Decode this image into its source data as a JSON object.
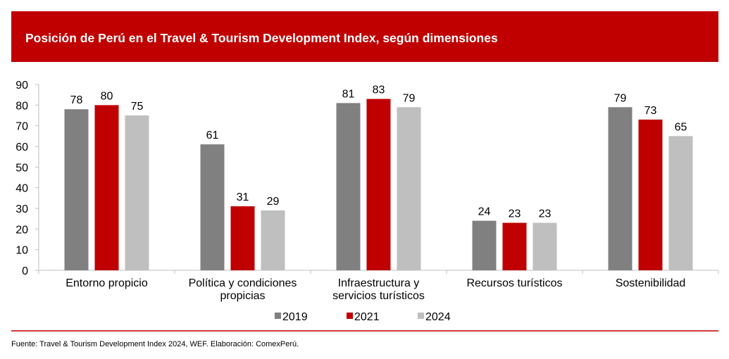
{
  "header": {
    "title": "Posición de Perú en el Travel & Tourism Development Index, según dimensiones"
  },
  "footer": {
    "source": "Fuente: Travel & Tourism Development Index 2024, WEF. Elaboración: ComexPerú."
  },
  "colors": {
    "header_bg": "#c00000",
    "series_2019": "#808080",
    "series_2021": "#c00000",
    "series_2024": "#bfbfbf",
    "footer_line": "#d23a3a"
  },
  "chart_data": {
    "type": "bar",
    "title": "Posición de Perú en el Travel & Tourism Development Index, según dimensiones",
    "xlabel": "",
    "ylabel": "",
    "ylim": [
      0,
      90
    ],
    "yticks": [
      0,
      10,
      20,
      30,
      40,
      50,
      60,
      70,
      80,
      90
    ],
    "grid": false,
    "legend_position": "bottom",
    "categories": [
      [
        "Entorno propicio"
      ],
      [
        "Política y condiciones",
        "propicias"
      ],
      [
        "Infraestructura y",
        "servicios turísticos"
      ],
      [
        "Recursos turísticos"
      ],
      [
        "Sostenibilidad"
      ]
    ],
    "series": [
      {
        "name": "2019",
        "color": "#808080",
        "values": [
          78,
          61,
          81,
          24,
          79
        ]
      },
      {
        "name": "2021",
        "color": "#c00000",
        "values": [
          80,
          31,
          83,
          23,
          73
        ]
      },
      {
        "name": "2024",
        "color": "#bfbfbf",
        "values": [
          75,
          29,
          79,
          23,
          65
        ]
      }
    ]
  }
}
